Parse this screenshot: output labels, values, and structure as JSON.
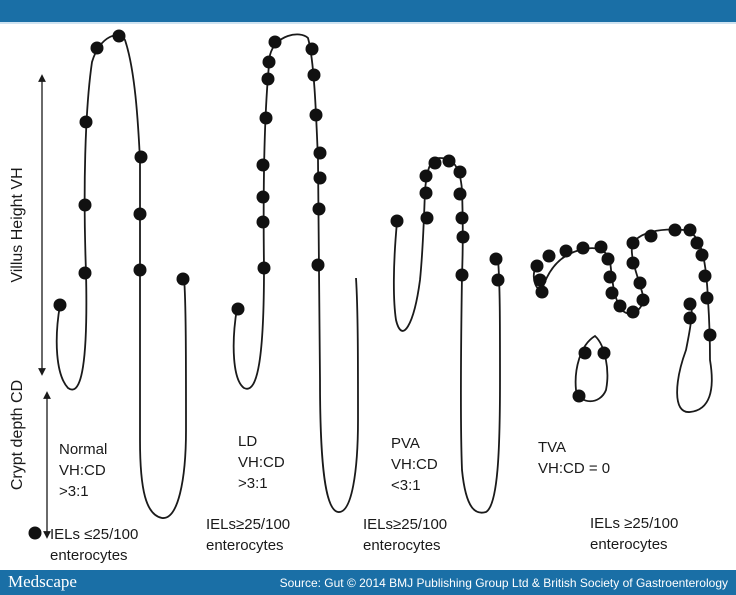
{
  "header": {
    "color": "#1a6fa6"
  },
  "axes": {
    "villus_height": "Villus Height VH",
    "crypt_depth": "Crypt depth CD"
  },
  "panels": [
    {
      "id": "normal",
      "name": "Normal",
      "ratio_label": "VH:CD",
      "ratio": ">3:1"
    },
    {
      "id": "ld",
      "name": "LD",
      "ratio_label": "VH:CD",
      "ratio": ">3:1",
      "iel": "IELs≥25/100",
      "iel2": "enterocytes"
    },
    {
      "id": "pva",
      "name": "PVA",
      "ratio_label": "VH:CD",
      "ratio": "<3:1",
      "iel": "IELs≥25/100",
      "iel2": "enterocytes"
    },
    {
      "id": "tva",
      "name": "TVA",
      "ratio": "VH:CD = 0",
      "iel": "IELs ≥25/100",
      "iel2": "enterocytes"
    }
  ],
  "legend": {
    "line1": "IELs ≤25/100",
    "line2": "enterocytes",
    "icon": "filled-circle-icon"
  },
  "footer": {
    "brand": "Medscape",
    "source": "Source: Gut © 2014 BMJ Publishing Group Ltd & British Society of Gastroenterology"
  }
}
